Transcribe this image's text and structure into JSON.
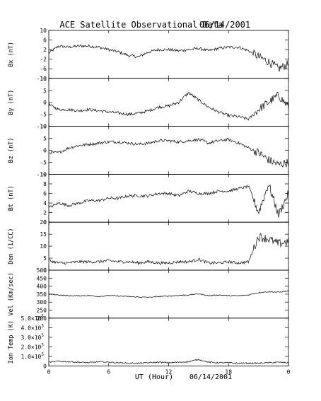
{
  "title": "ACE Satellite Observational Data",
  "date": "06/14/2001",
  "xlabel": "UT (Hour)",
  "chart_data": [
    {
      "type": "line",
      "name": "bx",
      "ylabel": "Bx (nT)",
      "yticks": [
        "10",
        "6",
        "2",
        "-2",
        "-6",
        "-10"
      ],
      "ytick_values": [
        10,
        6,
        2,
        -2,
        -6,
        -10
      ],
      "ylim": [
        -10,
        10
      ],
      "x": [
        0,
        1,
        2,
        3,
        4,
        5,
        6,
        7,
        8,
        9,
        10,
        11,
        12,
        13,
        14,
        15,
        16,
        17,
        18,
        19,
        20,
        21,
        22,
        23,
        24
      ],
      "values": [
        0.5,
        3.5,
        3,
        3.5,
        3.5,
        3,
        2,
        1,
        -0.5,
        -1,
        1,
        2,
        2,
        1.5,
        2,
        2.5,
        1.5,
        2.5,
        3,
        3,
        1.5,
        -1,
        -3,
        -6,
        -4
      ]
    },
    {
      "type": "line",
      "name": "by",
      "ylabel": "By (nT)",
      "yticks": [
        "10",
        "5",
        "0",
        "-5",
        "-10"
      ],
      "ytick_values": [
        10,
        5,
        0,
        -5,
        -10
      ],
      "ylim": [
        -10,
        10
      ],
      "x": [
        0,
        1,
        2,
        3,
        4,
        5,
        6,
        7,
        8,
        9,
        10,
        11,
        12,
        13,
        14,
        15,
        16,
        17,
        18,
        19,
        20,
        21,
        22,
        23,
        24
      ],
      "values": [
        -1,
        -3,
        -3,
        -3.5,
        -3,
        -3.5,
        -4,
        -4.5,
        -5,
        -4.5,
        -3.5,
        -2,
        -1.5,
        0,
        4,
        1,
        -2,
        -4,
        -5.5,
        -6,
        -7,
        -3,
        0,
        3,
        -2
      ]
    },
    {
      "type": "line",
      "name": "bz",
      "ylabel": "Bz (nT)",
      "yticks": [
        "10",
        "5",
        "0",
        "-5",
        "-10"
      ],
      "ytick_values": [
        10,
        5,
        0,
        -5,
        -10
      ],
      "ylim": [
        -10,
        10
      ],
      "x": [
        0,
        1,
        2,
        3,
        4,
        5,
        6,
        7,
        8,
        9,
        10,
        11,
        12,
        13,
        14,
        15,
        16,
        17,
        18,
        19,
        20,
        21,
        22,
        23,
        24
      ],
      "values": [
        -1,
        -1,
        1,
        2,
        2.5,
        3,
        3.5,
        3.5,
        3,
        2.5,
        3,
        4,
        4,
        3.5,
        4,
        4.5,
        3,
        4,
        4.5,
        3,
        1,
        -1,
        -4,
        -6,
        -5
      ]
    },
    {
      "type": "line",
      "name": "bt",
      "ylabel": "Bt (nT)",
      "yticks": [
        "10",
        "8",
        "6",
        "4",
        "2",
        "0"
      ],
      "ytick_values": [
        10,
        8,
        6,
        4,
        2,
        0
      ],
      "ylim": [
        0,
        10
      ],
      "x": [
        0,
        1,
        2,
        3,
        4,
        5,
        6,
        7,
        8,
        9,
        10,
        11,
        12,
        13,
        14,
        15,
        16,
        17,
        18,
        19,
        20,
        21,
        22,
        23,
        24
      ],
      "values": [
        3,
        4,
        3.5,
        4,
        4.5,
        4.5,
        5,
        5,
        5.5,
        5.5,
        5.5,
        6,
        6,
        5.5,
        6.5,
        6,
        6,
        6.5,
        6.5,
        7,
        7.5,
        2,
        8,
        1.5,
        6
      ]
    },
    {
      "type": "line",
      "name": "den",
      "ylabel": "Den (1/CC)",
      "yticks": [
        "20",
        "15",
        "10",
        "5",
        "0"
      ],
      "ytick_values": [
        20,
        15,
        10,
        5,
        0
      ],
      "ylim": [
        0,
        20
      ],
      "x": [
        0,
        1,
        2,
        3,
        4,
        5,
        6,
        7,
        8,
        9,
        10,
        11,
        12,
        13,
        14,
        15,
        16,
        17,
        18,
        19,
        20,
        21,
        22,
        23,
        24
      ],
      "values": [
        4,
        3,
        3,
        3.5,
        3.5,
        3.5,
        4,
        3.5,
        3.5,
        3,
        3.5,
        3,
        3,
        3.5,
        3.5,
        4.5,
        3,
        3,
        3.5,
        3,
        3.5,
        14,
        13,
        11,
        12
      ]
    },
    {
      "type": "line",
      "name": "vel",
      "ylabel": "Vel (Km/sec)",
      "yticks": [
        "500",
        "450",
        "400",
        "350",
        "300",
        "250",
        "200"
      ],
      "ytick_values": [
        500,
        450,
        400,
        350,
        300,
        250,
        200
      ],
      "ylim": [
        200,
        500
      ],
      "x": [
        0,
        1,
        2,
        3,
        4,
        5,
        6,
        7,
        8,
        9,
        10,
        11,
        12,
        13,
        14,
        15,
        16,
        17,
        18,
        19,
        20,
        21,
        22,
        23,
        24
      ],
      "values": [
        350,
        345,
        340,
        340,
        342,
        335,
        342,
        338,
        335,
        332,
        330,
        335,
        338,
        342,
        345,
        352,
        340,
        345,
        340,
        340,
        345,
        360,
        365,
        362,
        370
      ]
    },
    {
      "type": "line",
      "name": "temp",
      "ylabel": "Ion Temp (K)",
      "yticks": [
        "5.0×10",
        "4.0×10",
        "3.0×10",
        "2.0×10",
        "1.0×10",
        "0"
      ],
      "ytick_values": [
        500000,
        400000,
        300000,
        200000,
        100000,
        0
      ],
      "ytick_exponent": "5",
      "ylim": [
        0,
        500000
      ],
      "x": [
        0,
        1,
        2,
        3,
        4,
        5,
        6,
        7,
        8,
        9,
        10,
        11,
        12,
        13,
        14,
        15,
        16,
        17,
        18,
        19,
        20,
        21,
        22,
        23,
        24
      ],
      "values": [
        40000,
        50000,
        45000,
        40000,
        35000,
        45000,
        40000,
        35000,
        30000,
        30000,
        35000,
        40000,
        35000,
        40000,
        45000,
        70000,
        40000,
        35000,
        35000,
        30000,
        30000,
        30000,
        35000,
        40000,
        35000
      ]
    }
  ],
  "xaxis": {
    "ticks": [
      "0",
      "6",
      "12",
      "18",
      "0"
    ],
    "tick_values": [
      0,
      6,
      12,
      18,
      24
    ],
    "range": [
      0,
      24
    ]
  }
}
